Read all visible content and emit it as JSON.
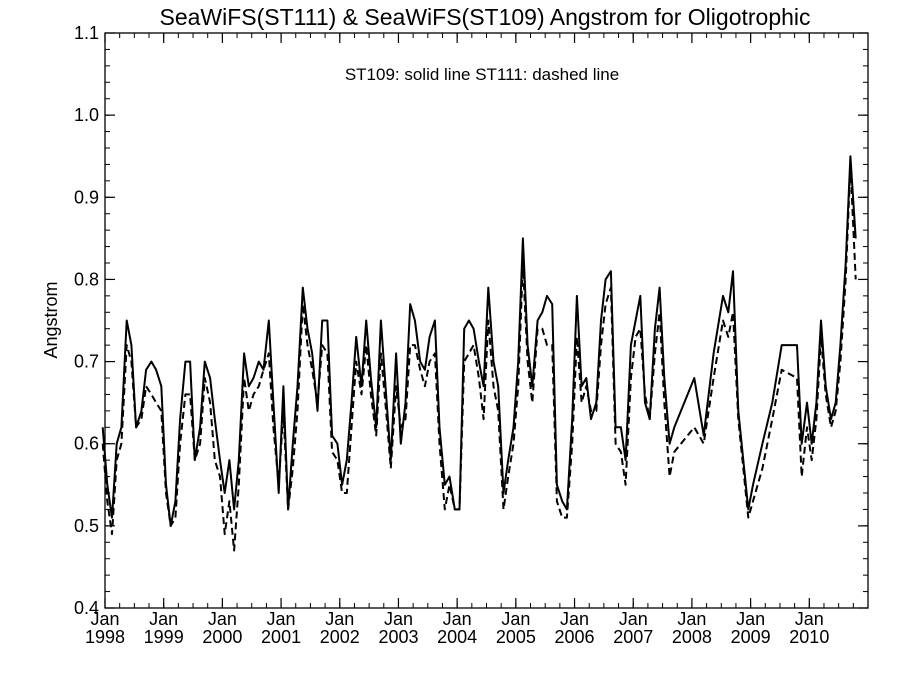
{
  "chart_data": {
    "type": "line",
    "title": "SeaWiFS(ST111) & SeaWiFS(ST109)  Angstrom for Oligotrophic",
    "annotation": "ST109: solid line   ST111: dashed line",
    "xlabel": "",
    "ylabel": "Angstrom",
    "xlim": [
      1998.0,
      2011.0
    ],
    "ylim": [
      0.4,
      1.1
    ],
    "yticks": [
      "0.4",
      "0.5",
      "0.6",
      "0.7",
      "0.8",
      "0.9",
      "1.0",
      "1.1"
    ],
    "xticks": [
      {
        "month": "Jan",
        "year": "1998",
        "x": 1998
      },
      {
        "month": "Jan",
        "year": "1999",
        "x": 1999
      },
      {
        "month": "Jan",
        "year": "2000",
        "x": 2000
      },
      {
        "month": "Jan",
        "year": "2001",
        "x": 2001
      },
      {
        "month": "Jan",
        "year": "2002",
        "x": 2002
      },
      {
        "month": "Jan",
        "year": "2003",
        "x": 2003
      },
      {
        "month": "Jan",
        "year": "2004",
        "x": 2004
      },
      {
        "month": "Jan",
        "year": "2005",
        "x": 2005
      },
      {
        "month": "Jan",
        "year": "2006",
        "x": 2006
      },
      {
        "month": "Jan",
        "year": "2007",
        "x": 2007
      },
      {
        "month": "Jan",
        "year": "2008",
        "x": 2008
      },
      {
        "month": "Jan",
        "year": "2009",
        "x": 2009
      },
      {
        "month": "Jan",
        "year": "2010",
        "x": 2010
      }
    ],
    "series": [
      {
        "name": "ST109",
        "style": "solid",
        "color": "#000000",
        "points": [
          [
            1997.96,
            0.62
          ],
          [
            1998.04,
            0.55
          ],
          [
            1998.12,
            0.51
          ],
          [
            1998.2,
            0.6
          ],
          [
            1998.28,
            0.62
          ],
          [
            1998.37,
            0.75
          ],
          [
            1998.45,
            0.72
          ],
          [
            1998.53,
            0.62
          ],
          [
            1998.62,
            0.64
          ],
          [
            1998.7,
            0.69
          ],
          [
            1998.79,
            0.7
          ],
          [
            1998.87,
            0.69
          ],
          [
            1998.96,
            0.67
          ],
          [
            1999.04,
            0.55
          ],
          [
            1999.12,
            0.5
          ],
          [
            1999.2,
            0.53
          ],
          [
            1999.28,
            0.63
          ],
          [
            1999.37,
            0.7
          ],
          [
            1999.45,
            0.7
          ],
          [
            1999.53,
            0.58
          ],
          [
            1999.62,
            0.62
          ],
          [
            1999.7,
            0.7
          ],
          [
            1999.79,
            0.68
          ],
          [
            1999.87,
            0.63
          ],
          [
            1999.96,
            0.58
          ],
          [
            2000.04,
            0.54
          ],
          [
            2000.12,
            0.58
          ],
          [
            2000.2,
            0.52
          ],
          [
            2000.28,
            0.58
          ],
          [
            2000.37,
            0.71
          ],
          [
            2000.45,
            0.67
          ],
          [
            2000.53,
            0.68
          ],
          [
            2000.62,
            0.7
          ],
          [
            2000.7,
            0.69
          ],
          [
            2000.79,
            0.75
          ],
          [
            2000.87,
            0.65
          ],
          [
            2000.96,
            0.54
          ],
          [
            2001.04,
            0.67
          ],
          [
            2001.12,
            0.52
          ],
          [
            2001.2,
            0.6
          ],
          [
            2001.28,
            0.67
          ],
          [
            2001.37,
            0.79
          ],
          [
            2001.45,
            0.74
          ],
          [
            2001.53,
            0.71
          ],
          [
            2001.62,
            0.64
          ],
          [
            2001.7,
            0.75
          ],
          [
            2001.79,
            0.75
          ],
          [
            2001.87,
            0.61
          ],
          [
            2001.96,
            0.6
          ],
          [
            2002.04,
            0.55
          ],
          [
            2002.12,
            0.58
          ],
          [
            2002.2,
            0.65
          ],
          [
            2002.28,
            0.73
          ],
          [
            2002.37,
            0.67
          ],
          [
            2002.45,
            0.75
          ],
          [
            2002.53,
            0.68
          ],
          [
            2002.62,
            0.62
          ],
          [
            2002.7,
            0.75
          ],
          [
            2002.79,
            0.66
          ],
          [
            2002.87,
            0.58
          ],
          [
            2002.96,
            0.71
          ],
          [
            2003.04,
            0.6
          ],
          [
            2003.12,
            0.65
          ],
          [
            2003.2,
            0.77
          ],
          [
            2003.28,
            0.75
          ],
          [
            2003.37,
            0.7
          ],
          [
            2003.45,
            0.69
          ],
          [
            2003.53,
            0.73
          ],
          [
            2003.62,
            0.75
          ],
          [
            2003.7,
            0.62
          ],
          [
            2003.79,
            0.55
          ],
          [
            2003.87,
            0.56
          ],
          [
            2003.96,
            0.52
          ],
          [
            2004.04,
            0.52
          ],
          [
            2004.12,
            0.74
          ],
          [
            2004.2,
            0.75
          ],
          [
            2004.28,
            0.74
          ],
          [
            2004.37,
            0.7
          ],
          [
            2004.45,
            0.67
          ],
          [
            2004.53,
            0.79
          ],
          [
            2004.62,
            0.7
          ],
          [
            2004.7,
            0.67
          ],
          [
            2004.79,
            0.54
          ],
          [
            2004.87,
            0.58
          ],
          [
            2004.96,
            0.62
          ],
          [
            2005.04,
            0.7
          ],
          [
            2005.12,
            0.85
          ],
          [
            2005.2,
            0.72
          ],
          [
            2005.28,
            0.67
          ],
          [
            2005.37,
            0.75
          ],
          [
            2005.45,
            0.76
          ],
          [
            2005.53,
            0.78
          ],
          [
            2005.62,
            0.77
          ],
          [
            2005.7,
            0.55
          ],
          [
            2005.79,
            0.53
          ],
          [
            2005.87,
            0.52
          ],
          [
            2005.96,
            0.63
          ],
          [
            2006.04,
            0.78
          ],
          [
            2006.12,
            0.67
          ],
          [
            2006.2,
            0.68
          ],
          [
            2006.28,
            0.63
          ],
          [
            2006.37,
            0.65
          ],
          [
            2006.45,
            0.75
          ],
          [
            2006.53,
            0.8
          ],
          [
            2006.62,
            0.81
          ],
          [
            2006.7,
            0.62
          ],
          [
            2006.79,
            0.62
          ],
          [
            2006.87,
            0.58
          ],
          [
            2006.96,
            0.72
          ],
          [
            2007.04,
            0.75
          ],
          [
            2007.12,
            0.78
          ],
          [
            2007.2,
            0.65
          ],
          [
            2007.28,
            0.63
          ],
          [
            2007.37,
            0.74
          ],
          [
            2007.45,
            0.79
          ],
          [
            2007.53,
            0.68
          ],
          [
            2007.62,
            0.6
          ],
          [
            2007.7,
            0.62
          ],
          [
            2008.04,
            0.68
          ],
          [
            2008.2,
            0.61
          ],
          [
            2008.37,
            0.71
          ],
          [
            2008.53,
            0.78
          ],
          [
            2008.62,
            0.76
          ],
          [
            2008.7,
            0.81
          ],
          [
            2008.79,
            0.64
          ],
          [
            2008.96,
            0.52
          ],
          [
            2009.04,
            0.55
          ],
          [
            2009.2,
            0.6
          ],
          [
            2009.37,
            0.65
          ],
          [
            2009.53,
            0.72
          ],
          [
            2009.79,
            0.72
          ],
          [
            2009.87,
            0.6
          ],
          [
            2009.96,
            0.65
          ],
          [
            2010.04,
            0.6
          ],
          [
            2010.12,
            0.65
          ],
          [
            2010.2,
            0.75
          ],
          [
            2010.28,
            0.67
          ],
          [
            2010.37,
            0.63
          ],
          [
            2010.45,
            0.65
          ],
          [
            2010.53,
            0.72
          ],
          [
            2010.62,
            0.82
          ],
          [
            2010.7,
            0.95
          ],
          [
            2010.79,
            0.85
          ]
        ]
      },
      {
        "name": "ST111",
        "style": "dashed",
        "color": "#000000",
        "points": [
          [
            1997.96,
            0.6
          ],
          [
            1998.04,
            0.53
          ],
          [
            1998.12,
            0.49
          ],
          [
            1998.2,
            0.58
          ],
          [
            1998.28,
            0.6
          ],
          [
            1998.37,
            0.72
          ],
          [
            1998.45,
            0.7
          ],
          [
            1998.53,
            0.62
          ],
          [
            1998.62,
            0.63
          ],
          [
            1998.7,
            0.67
          ],
          [
            1998.79,
            0.66
          ],
          [
            1998.87,
            0.65
          ],
          [
            1998.96,
            0.64
          ],
          [
            1999.04,
            0.54
          ],
          [
            1999.12,
            0.5
          ],
          [
            1999.2,
            0.51
          ],
          [
            1999.28,
            0.6
          ],
          [
            1999.37,
            0.66
          ],
          [
            1999.45,
            0.66
          ],
          [
            1999.53,
            0.58
          ],
          [
            1999.62,
            0.6
          ],
          [
            1999.7,
            0.68
          ],
          [
            1999.79,
            0.65
          ],
          [
            1999.87,
            0.58
          ],
          [
            1999.96,
            0.56
          ],
          [
            2000.04,
            0.49
          ],
          [
            2000.12,
            0.53
          ],
          [
            2000.2,
            0.47
          ],
          [
            2000.28,
            0.55
          ],
          [
            2000.37,
            0.68
          ],
          [
            2000.45,
            0.64
          ],
          [
            2000.53,
            0.66
          ],
          [
            2000.62,
            0.67
          ],
          [
            2000.7,
            0.69
          ],
          [
            2000.79,
            0.71
          ],
          [
            2000.87,
            0.62
          ],
          [
            2000.96,
            0.55
          ],
          [
            2001.04,
            0.64
          ],
          [
            2001.12,
            0.52
          ],
          [
            2001.2,
            0.57
          ],
          [
            2001.28,
            0.64
          ],
          [
            2001.37,
            0.77
          ],
          [
            2001.45,
            0.72
          ],
          [
            2001.53,
            0.69
          ],
          [
            2001.62,
            0.65
          ],
          [
            2001.7,
            0.72
          ],
          [
            2001.79,
            0.71
          ],
          [
            2001.87,
            0.59
          ],
          [
            2001.96,
            0.58
          ],
          [
            2002.04,
            0.54
          ],
          [
            2002.12,
            0.54
          ],
          [
            2002.2,
            0.62
          ],
          [
            2002.28,
            0.7
          ],
          [
            2002.37,
            0.66
          ],
          [
            2002.45,
            0.72
          ],
          [
            2002.53,
            0.66
          ],
          [
            2002.62,
            0.61
          ],
          [
            2002.7,
            0.71
          ],
          [
            2002.79,
            0.64
          ],
          [
            2002.87,
            0.57
          ],
          [
            2002.96,
            0.67
          ],
          [
            2003.04,
            0.62
          ],
          [
            2003.12,
            0.63
          ],
          [
            2003.2,
            0.72
          ],
          [
            2003.28,
            0.72
          ],
          [
            2003.37,
            0.69
          ],
          [
            2003.45,
            0.67
          ],
          [
            2003.53,
            0.7
          ],
          [
            2003.62,
            0.71
          ],
          [
            2003.7,
            0.6
          ],
          [
            2003.79,
            0.52
          ],
          [
            2003.87,
            0.55
          ],
          [
            2003.96,
            0.52
          ],
          [
            2004.04,
            0.52
          ],
          [
            2004.12,
            0.7
          ],
          [
            2004.2,
            0.71
          ],
          [
            2004.28,
            0.72
          ],
          [
            2004.37,
            0.68
          ],
          [
            2004.45,
            0.63
          ],
          [
            2004.53,
            0.75
          ],
          [
            2004.62,
            0.67
          ],
          [
            2004.7,
            0.64
          ],
          [
            2004.79,
            0.52
          ],
          [
            2004.87,
            0.56
          ],
          [
            2004.96,
            0.6
          ],
          [
            2005.04,
            0.67
          ],
          [
            2005.12,
            0.82
          ],
          [
            2005.2,
            0.7
          ],
          [
            2005.28,
            0.65
          ],
          [
            2005.37,
            0.74
          ],
          [
            2005.45,
            0.74
          ],
          [
            2005.53,
            0.72
          ],
          [
            2005.62,
            0.72
          ],
          [
            2005.7,
            0.53
          ],
          [
            2005.79,
            0.51
          ],
          [
            2005.87,
            0.51
          ],
          [
            2005.96,
            0.6
          ],
          [
            2006.04,
            0.73
          ],
          [
            2006.12,
            0.65
          ],
          [
            2006.2,
            0.67
          ],
          [
            2006.28,
            0.64
          ],
          [
            2006.37,
            0.64
          ],
          [
            2006.45,
            0.72
          ],
          [
            2006.53,
            0.77
          ],
          [
            2006.62,
            0.79
          ],
          [
            2006.7,
            0.6
          ],
          [
            2006.79,
            0.59
          ],
          [
            2006.87,
            0.55
          ],
          [
            2006.96,
            0.68
          ],
          [
            2007.04,
            0.73
          ],
          [
            2007.12,
            0.74
          ],
          [
            2007.2,
            0.66
          ],
          [
            2007.28,
            0.63
          ],
          [
            2007.37,
            0.71
          ],
          [
            2007.45,
            0.76
          ],
          [
            2007.53,
            0.65
          ],
          [
            2007.62,
            0.56
          ],
          [
            2007.7,
            0.59
          ],
          [
            2008.04,
            0.62
          ],
          [
            2008.2,
            0.6
          ],
          [
            2008.37,
            0.68
          ],
          [
            2008.53,
            0.75
          ],
          [
            2008.62,
            0.73
          ],
          [
            2008.7,
            0.76
          ],
          [
            2008.79,
            0.63
          ],
          [
            2008.96,
            0.51
          ],
          [
            2009.04,
            0.53
          ],
          [
            2009.2,
            0.57
          ],
          [
            2009.37,
            0.63
          ],
          [
            2009.53,
            0.69
          ],
          [
            2009.79,
            0.68
          ],
          [
            2009.87,
            0.56
          ],
          [
            2009.96,
            0.62
          ],
          [
            2010.04,
            0.58
          ],
          [
            2010.12,
            0.63
          ],
          [
            2010.2,
            0.73
          ],
          [
            2010.28,
            0.66
          ],
          [
            2010.37,
            0.62
          ],
          [
            2010.45,
            0.64
          ],
          [
            2010.53,
            0.7
          ],
          [
            2010.62,
            0.8
          ],
          [
            2010.7,
            0.94
          ],
          [
            2010.79,
            0.8
          ]
        ]
      }
    ]
  }
}
